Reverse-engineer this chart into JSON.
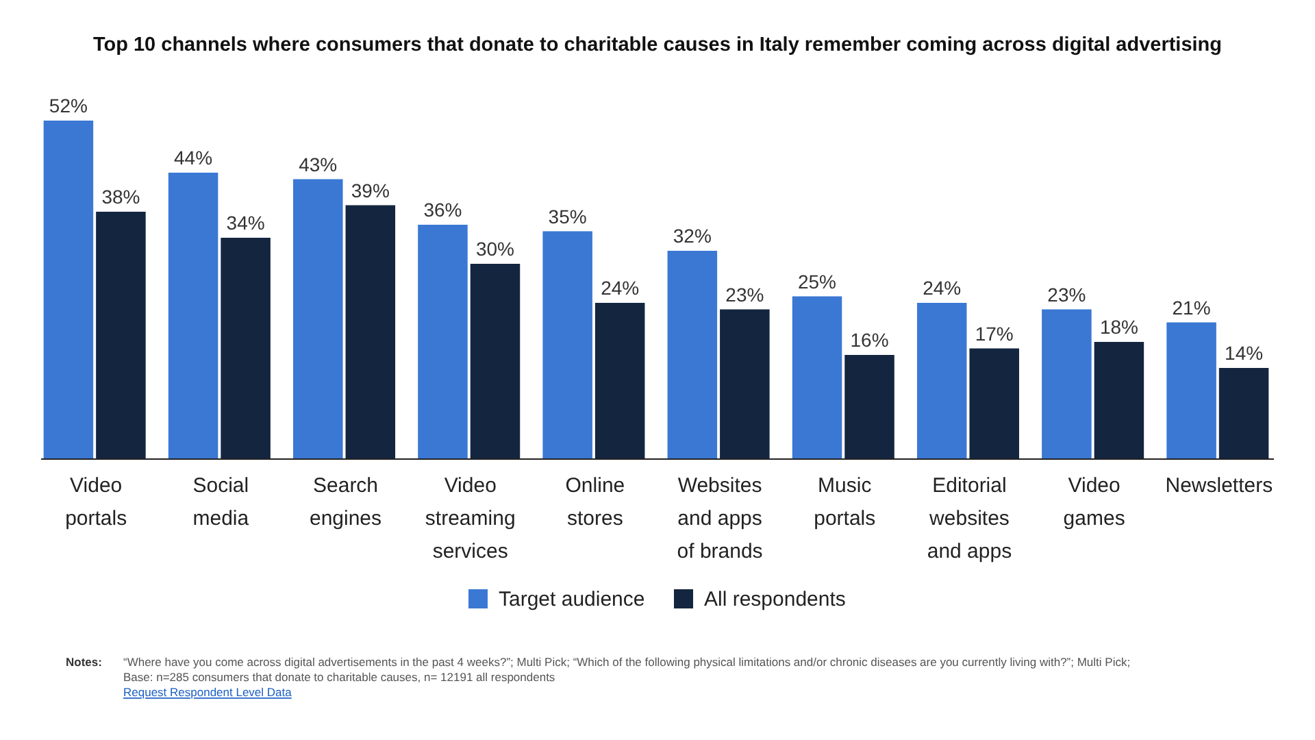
{
  "chart_data": {
    "type": "bar",
    "title": "Top 10 channels where consumers that donate to charitable causes in Italy remember coming across digital advertising",
    "categories": [
      "Video portals",
      "Social media",
      "Search engines",
      "Video streaming services",
      "Online stores",
      "Websites and apps of brands",
      "Music portals",
      "Editorial websites and apps",
      "Video games",
      "Newsletters"
    ],
    "series": [
      {
        "name": "Target audience",
        "color": "#3a78d4",
        "values": [
          52,
          44,
          43,
          36,
          35,
          32,
          25,
          24,
          23,
          21
        ],
        "value_labels": [
          "52%",
          "44%",
          "43%",
          "36%",
          "35%",
          "32%",
          "25%",
          "24%",
          "23%",
          "21%"
        ]
      },
      {
        "name": "All respondents",
        "color": "#14253f",
        "values": [
          38,
          34,
          39,
          30,
          24,
          23,
          16,
          17,
          18,
          14
        ],
        "value_labels": [
          "38%",
          "34%",
          "39%",
          "30%",
          "24%",
          "23%",
          "16%",
          "17%",
          "18%",
          "14%"
        ]
      }
    ],
    "legend": "bottom",
    "annotations": [
      "Notes:",
      "“Where have you come across digital advertisements in the past 4 weeks?”; Multi Pick; “Which of the following physical limitations and/or chronic diseases are you currently living with?”; Multi Pick;  Base: n=285 consumers that donate to charitable causes, n= 12191 all respondents",
      "Request Respondent Level Data"
    ]
  }
}
